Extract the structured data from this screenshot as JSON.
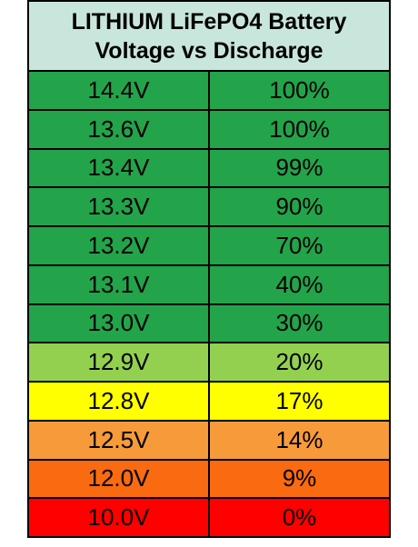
{
  "header": {
    "line1": "LITHIUM LiFePO4 Battery",
    "line2": "Voltage vs Discharge"
  },
  "rows": [
    {
      "voltage": "14.4V",
      "percent": "100%",
      "color": "#23a34a"
    },
    {
      "voltage": "13.6V",
      "percent": "100%",
      "color": "#23a34a"
    },
    {
      "voltage": "13.4V",
      "percent": "99%",
      "color": "#23a34a"
    },
    {
      "voltage": "13.3V",
      "percent": "90%",
      "color": "#23a34a"
    },
    {
      "voltage": "13.2V",
      "percent": "70%",
      "color": "#23a34a"
    },
    {
      "voltage": "13.1V",
      "percent": "40%",
      "color": "#23a34a"
    },
    {
      "voltage": "13.0V",
      "percent": "30%",
      "color": "#23a34a"
    },
    {
      "voltage": "12.9V",
      "percent": "20%",
      "color": "#93d050"
    },
    {
      "voltage": "12.8V",
      "percent": "17%",
      "color": "#ffff00"
    },
    {
      "voltage": "12.5V",
      "percent": "14%",
      "color": "#f79a3a"
    },
    {
      "voltage": "12.0V",
      "percent": "9%",
      "color": "#fa6a10"
    },
    {
      "voltage": "10.0V",
      "percent": "0%",
      "color": "#ff0000"
    }
  ]
}
